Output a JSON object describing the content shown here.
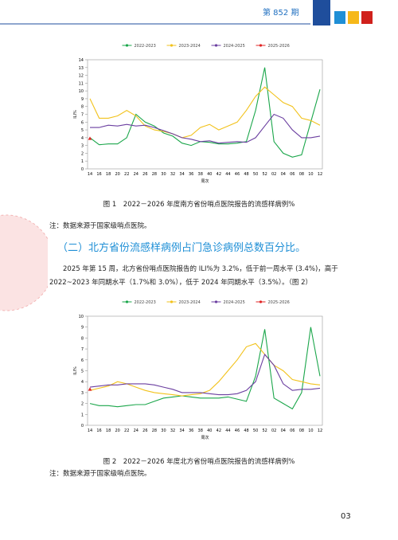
{
  "header": {
    "issue": "第 852 期"
  },
  "chart_data": [
    {
      "type": "line",
      "xlabel": "周次",
      "ylabel": "ILI%",
      "categories": [
        "14",
        "16",
        "18",
        "20",
        "22",
        "24",
        "26",
        "28",
        "30",
        "32",
        "34",
        "36",
        "38",
        "40",
        "42",
        "44",
        "46",
        "48",
        "50",
        "52",
        "02",
        "04",
        "06",
        "08",
        "10",
        "12"
      ],
      "ylim": [
        0,
        14
      ],
      "yticks": [
        0,
        1,
        2,
        3,
        4,
        5,
        6,
        7,
        8,
        9,
        10,
        11,
        12,
        13,
        14
      ],
      "series": [
        {
          "name": "2022-2023",
          "color": "#1aa64a",
          "values": [
            4.0,
            3.1,
            3.2,
            3.2,
            4.0,
            7.0,
            6.0,
            5.5,
            4.6,
            4.2,
            3.3,
            3.0,
            3.5,
            3.4,
            3.2,
            3.2,
            3.3,
            3.5,
            7.5,
            13.0,
            3.5,
            2.0,
            1.5,
            1.8,
            6.0,
            10.2
          ]
        },
        {
          "name": "2023-2024",
          "color": "#f2c21b",
          "values": [
            9.0,
            6.5,
            6.5,
            6.8,
            7.5,
            6.8,
            5.5,
            5.0,
            4.8,
            4.5,
            4.0,
            4.3,
            5.3,
            5.7,
            5.0,
            5.5,
            6.0,
            7.5,
            9.3,
            10.5,
            9.5,
            8.5,
            8.0,
            6.5,
            6.2,
            5.6
          ]
        },
        {
          "name": "2024-2025",
          "color": "#6b3fa0",
          "values": [
            5.3,
            5.3,
            5.6,
            5.5,
            5.7,
            5.5,
            5.6,
            5.3,
            4.9,
            4.5,
            4.0,
            3.8,
            3.5,
            3.6,
            3.3,
            3.4,
            3.5,
            3.4,
            4.0,
            5.5,
            7.0,
            6.5,
            5.0,
            4.0,
            4.0,
            4.2
          ]
        },
        {
          "name": "2025-2026",
          "color": "#e02424",
          "marker": "triangle",
          "values": [
            3.9,
            null,
            null,
            null,
            null,
            null,
            null,
            null,
            null,
            null,
            null,
            null,
            null,
            null,
            null,
            null,
            null,
            null,
            null,
            null,
            null,
            null,
            null,
            null,
            null,
            null
          ]
        }
      ]
    },
    {
      "type": "line",
      "xlabel": "周次",
      "ylabel": "ILI%",
      "categories": [
        "14",
        "16",
        "18",
        "20",
        "22",
        "24",
        "26",
        "28",
        "30",
        "32",
        "34",
        "36",
        "38",
        "40",
        "42",
        "44",
        "46",
        "48",
        "50",
        "52",
        "02",
        "04",
        "06",
        "08",
        "10",
        "12"
      ],
      "ylim": [
        0,
        10
      ],
      "yticks": [
        0,
        1,
        2,
        3,
        4,
        5,
        6,
        7,
        8,
        9,
        10
      ],
      "series": [
        {
          "name": "2022-2023",
          "color": "#1aa64a",
          "values": [
            2.0,
            1.8,
            1.8,
            1.7,
            1.8,
            1.9,
            1.9,
            2.2,
            2.5,
            2.6,
            2.7,
            2.6,
            2.5,
            2.5,
            2.5,
            2.6,
            2.4,
            2.2,
            4.5,
            8.8,
            2.5,
            2.0,
            1.5,
            3.0,
            9.0,
            4.5
          ]
        },
        {
          "name": "2023-2024",
          "color": "#f2c21b",
          "values": [
            3.2,
            3.4,
            3.6,
            4.0,
            3.8,
            3.5,
            3.2,
            3.0,
            2.9,
            2.8,
            2.7,
            2.8,
            2.9,
            3.2,
            4.0,
            5.0,
            6.0,
            7.2,
            7.5,
            6.5,
            5.5,
            5.0,
            4.2,
            4.0,
            3.8,
            3.7
          ]
        },
        {
          "name": "2024-2025",
          "color": "#6b3fa0",
          "values": [
            3.5,
            3.6,
            3.7,
            3.7,
            3.8,
            3.8,
            3.8,
            3.7,
            3.5,
            3.3,
            3.0,
            3.0,
            3.0,
            2.9,
            2.8,
            2.8,
            2.9,
            3.2,
            4.0,
            6.5,
            5.5,
            3.8,
            3.2,
            3.3,
            3.3,
            3.4
          ]
        },
        {
          "name": "2025-2026",
          "color": "#e02424",
          "marker": "triangle",
          "values": [
            3.3,
            null,
            null,
            null,
            null,
            null,
            null,
            null,
            null,
            null,
            null,
            null,
            null,
            null,
            null,
            null,
            null,
            null,
            null,
            null,
            null,
            null,
            null,
            null,
            null,
            null
          ]
        }
      ]
    }
  ],
  "caption1": "图 1　2022－2026 年度南方省份哨点医院报告的流感样病例%",
  "note1": "注：数据来源于国家级哨点医院。",
  "heading": "（二）北方省份流感样病例占门急诊病例总数百分比。",
  "paragraph": "2025 年第 15 周，北方省份哨点医院报告的 ILI%为 3.2%，低于前一周水平 (3.4%)，高于 2022~2023 年同期水平（1.7%和 3.0%），低于 2024 年同期水平（3.5%）。（图 2）",
  "caption2": "图 2　2022－2026 年度北方省份哨点医院报告的流感样病例%",
  "note2": "注：数据来源于国家级哨点医院。",
  "page_number": "03"
}
